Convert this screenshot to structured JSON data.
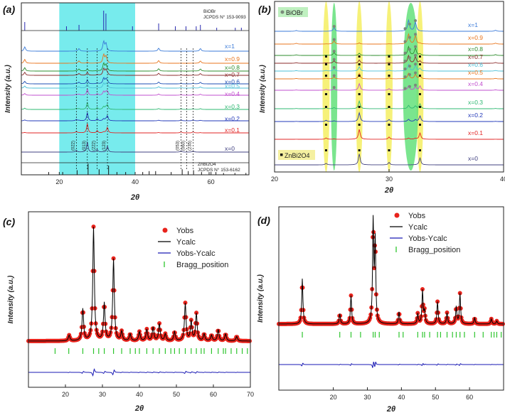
{
  "colors": {
    "cyan_band": "#5fe8ea",
    "yellow_band": "#f5f06a",
    "green_band": "#63e07a",
    "yobs": "#e8231c",
    "ycalc": "#000000",
    "diff": "#1a1ab4",
    "bragg": "#2ec52e"
  },
  "chart_data": [
    {
      "panel": "(a)",
      "type": "line",
      "xlabel": "2θ",
      "ylabel": "Intensity (a.u.)",
      "xlim": [
        10,
        70
      ],
      "xticks": [
        20,
        40,
        60
      ],
      "ref_top": {
        "name": "BiOBr",
        "card": "JCPDS N° 153-9093"
      },
      "ref_bottom": {
        "name": "ZnBi2O4",
        "card": "JCPDS N° 153-6162"
      },
      "highlight_range": [
        20,
        40
      ],
      "miller_labels": [
        {
          "text": "(022)",
          "x": 24.5
        },
        {
          "text": "(013)",
          "x": 27.4
        },
        {
          "text": "(222)",
          "x": 30.0
        },
        {
          "text": "(123)",
          "x": 32.7
        },
        {
          "text": "(053)",
          "x": 52.1
        },
        {
          "text": "(060)",
          "x": 53.6
        },
        {
          "text": "(235)",
          "x": 55.3
        }
      ],
      "series": [
        {
          "name": "x=1",
          "color": "#3a7ad8"
        },
        {
          "name": "x=0.9",
          "color": "#e8741c"
        },
        {
          "name": "x=0.8",
          "color": "#2e8c2e"
        },
        {
          "name": "x=0.7",
          "color": "#8b2a2a"
        },
        {
          "name": "x=0.6",
          "color": "#1e4fb4"
        },
        {
          "name": "x=0.5",
          "color": "#4bbfd6"
        },
        {
          "name": "x=0.4",
          "color": "#c24fcf"
        },
        {
          "name": "x=0.3",
          "color": "#2eb872"
        },
        {
          "name": "x=0.2",
          "color": "#2238b8"
        },
        {
          "name": "x=0.1",
          "color": "#e22424"
        },
        {
          "name": "x=0",
          "color": "#404080"
        }
      ]
    },
    {
      "panel": "(b)",
      "type": "line",
      "xlabel": "2θ",
      "ylabel": "Intensity (a.u.)",
      "xlim": [
        20,
        40
      ],
      "xticks": [
        20,
        30,
        40
      ],
      "legend_top": "BiOBr",
      "legend_bottom": "ZnBi2O4",
      "series": [
        {
          "name": "x=1",
          "color": "#3a7ad8"
        },
        {
          "name": "x=0.9",
          "color": "#e8741c"
        },
        {
          "name": "x=0.8",
          "color": "#2e8c2e"
        },
        {
          "name": "x=0.7",
          "color": "#8b2a2a"
        },
        {
          "name": "x=0.6",
          "color": "#4bbfd6"
        },
        {
          "name": "x=0.5",
          "color": "#e8741c"
        },
        {
          "name": "x=0.4",
          "color": "#c24fcf"
        },
        {
          "name": "x=0.3",
          "color": "#2eb872"
        },
        {
          "name": "x=0.2",
          "color": "#2238b8"
        },
        {
          "name": "x=0.1",
          "color": "#e22424"
        },
        {
          "name": "x=0",
          "color": "#404080"
        }
      ]
    },
    {
      "panel": "(c)",
      "type": "scatter",
      "xlabel": "2θ",
      "ylabel": "Intensity (a.u.)",
      "xlim": [
        10,
        70
      ],
      "xticks": [
        20,
        30,
        40,
        50,
        60,
        70
      ],
      "legend": [
        "Yobs",
        "Ycalc",
        "Yobs-Ycalc",
        "Bragg_position"
      ],
      "peaks": [
        {
          "x": 21.0,
          "h": 0.05
        },
        {
          "x": 24.7,
          "h": 0.28
        },
        {
          "x": 27.6,
          "h": 1.0
        },
        {
          "x": 30.5,
          "h": 0.33
        },
        {
          "x": 33.0,
          "h": 0.72
        },
        {
          "x": 35.2,
          "h": 0.08
        },
        {
          "x": 37.5,
          "h": 0.06
        },
        {
          "x": 40.0,
          "h": 0.08
        },
        {
          "x": 42.0,
          "h": 0.1
        },
        {
          "x": 43.7,
          "h": 0.12
        },
        {
          "x": 45.4,
          "h": 0.15
        },
        {
          "x": 47.0,
          "h": 0.06
        },
        {
          "x": 49.5,
          "h": 0.08
        },
        {
          "x": 52.4,
          "h": 0.33
        },
        {
          "x": 54.0,
          "h": 0.17
        },
        {
          "x": 55.4,
          "h": 0.24
        },
        {
          "x": 57.5,
          "h": 0.06
        },
        {
          "x": 59.5,
          "h": 0.05
        },
        {
          "x": 61.3,
          "h": 0.1
        },
        {
          "x": 63.3,
          "h": 0.06
        },
        {
          "x": 66.3,
          "h": 0.04
        }
      ],
      "bragg_positions": [
        17.2,
        20.9,
        24.7,
        27.6,
        29.0,
        30.5,
        33.0,
        35.2,
        37.5,
        38.9,
        40.0,
        42.0,
        43.7,
        45.4,
        47.0,
        48.5,
        49.5,
        50.8,
        52.4,
        54.0,
        55.4,
        56.7,
        57.5,
        59.5,
        61.3,
        62.7,
        63.3,
        64.8,
        66.3,
        67.8,
        69.2
      ]
    },
    {
      "panel": "(d)",
      "type": "scatter",
      "xlabel": "2θ",
      "ylabel": "Intensity (a.u.)",
      "xlim": [
        4,
        70
      ],
      "xticks": [
        20,
        30,
        40,
        50,
        60
      ],
      "legend": [
        "Yobs",
        "Ycalc",
        "Yobs-Ycalc",
        "Bragg_position"
      ],
      "peaks": [
        {
          "x": 10.9,
          "h": 0.45
        },
        {
          "x": 21.9,
          "h": 0.1
        },
        {
          "x": 25.2,
          "h": 0.28
        },
        {
          "x": 31.7,
          "h": 1.0
        },
        {
          "x": 32.3,
          "h": 0.8
        },
        {
          "x": 39.3,
          "h": 0.12
        },
        {
          "x": 44.8,
          "h": 0.1
        },
        {
          "x": 46.2,
          "h": 0.33
        },
        {
          "x": 46.8,
          "h": 0.12
        },
        {
          "x": 50.6,
          "h": 0.22
        },
        {
          "x": 53.4,
          "h": 0.11
        },
        {
          "x": 56.1,
          "h": 0.17
        },
        {
          "x": 57.2,
          "h": 0.3
        },
        {
          "x": 61.5,
          "h": 0.06
        },
        {
          "x": 66.4,
          "h": 0.05
        },
        {
          "x": 68.0,
          "h": 0.03
        }
      ],
      "bragg_positions": [
        10.9,
        21.9,
        25.2,
        28.0,
        31.7,
        32.3,
        33.5,
        39.3,
        40.5,
        44.8,
        46.2,
        46.8,
        48.3,
        50.6,
        51.5,
        53.4,
        55.0,
        56.1,
        57.2,
        58.5,
        61.5,
        64.0,
        66.4,
        67.2,
        68.0,
        69.3
      ]
    }
  ]
}
